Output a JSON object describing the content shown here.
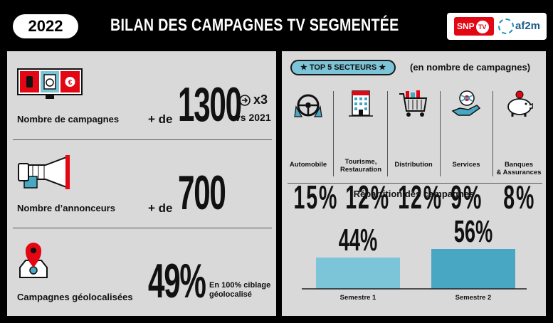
{
  "header": {
    "year": "2022",
    "title": "BILAN DES CAMPAGNES TV SEGMENTÉE",
    "logo_snptv": "SNP",
    "logo_snptv_badge": "TV",
    "logo_af2m": "af2m"
  },
  "kpis": {
    "campaigns": {
      "label": "Nombre de campagnes",
      "prefix": "+ de",
      "value": "1300",
      "trend_multiplier": "x3",
      "trend_comparison": "vs 2021",
      "icon": "tv-screens-icon"
    },
    "advertisers": {
      "label": "Nombre d’annonceurs",
      "prefix": "+ de",
      "value": "700",
      "icon": "megaphone-icon"
    },
    "geolocated": {
      "label": "Campagnes géolocalisées",
      "value": "49%",
      "note_line1": "En 100% ciblage",
      "note_line2": "géolocalisé",
      "icon": "map-pin-icon"
    }
  },
  "top5": {
    "title": "TOP 5 SECTEURS",
    "note": "(en nombre de campagnes)",
    "colors": {
      "accent": "#7cc4d8",
      "red": "#e30613"
    },
    "sectors": [
      {
        "name": "Automobile",
        "name2": "",
        "value": "15%",
        "icon": "steering-wheel-icon"
      },
      {
        "name": "Tourisme,",
        "name2": "Restauration",
        "value": "12%",
        "icon": "hotel-icon"
      },
      {
        "name": "Distribution",
        "name2": "",
        "value": "12%",
        "icon": "shopping-cart-icon"
      },
      {
        "name": "Services",
        "name2": "",
        "value": "9%",
        "icon": "service-hand-icon"
      },
      {
        "name": "Banques",
        "name2": "& Assurances",
        "value": "8%",
        "icon": "piggy-bank-icon"
      }
    ]
  },
  "chart_data": {
    "type": "bar",
    "title": "Répartition des campagnes",
    "categories": [
      "Semestre 1",
      "Semestre 2"
    ],
    "values": [
      44,
      56
    ],
    "value_labels": [
      "44%",
      "56%"
    ],
    "colors": [
      "#7cc4d8",
      "#48a8c4"
    ],
    "grid": false
  }
}
